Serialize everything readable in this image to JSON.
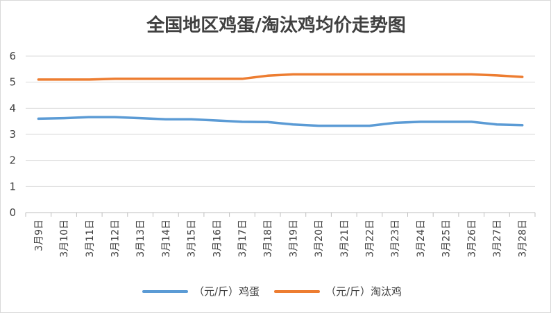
{
  "chart_data": {
    "type": "line",
    "title": "全国地区鸡蛋/淘汰鸡均价走势图",
    "xlabel": "",
    "ylabel": "",
    "categories": [
      "3月9日",
      "3月10日",
      "3月11日",
      "3月12日",
      "3月13日",
      "3月14日",
      "3月15日",
      "3月16日",
      "3月17日",
      "3月18日",
      "3月19日",
      "3月20日",
      "3月21日",
      "3月22日",
      "3月23日",
      "3月24日",
      "3月25日",
      "3月26日",
      "3月27日",
      "3月28日"
    ],
    "y_ticks": [
      "0",
      "1",
      "2",
      "3",
      "4",
      "5",
      "6"
    ],
    "ylim": [
      0,
      6
    ],
    "grid": true,
    "legend_position": "bottom",
    "series": [
      {
        "name": "（元/斤）鸡蛋",
        "color": "#5b9bd5",
        "values": [
          3.6,
          3.62,
          3.66,
          3.66,
          3.62,
          3.58,
          3.58,
          3.53,
          3.48,
          3.47,
          3.38,
          3.33,
          3.33,
          3.33,
          3.44,
          3.48,
          3.48,
          3.48,
          3.38,
          3.35
        ]
      },
      {
        "name": "（元/斤）淘汰鸡",
        "color": "#ed7d31",
        "values": [
          5.1,
          5.1,
          5.1,
          5.13,
          5.13,
          5.13,
          5.13,
          5.13,
          5.13,
          5.25,
          5.3,
          5.3,
          5.3,
          5.3,
          5.3,
          5.3,
          5.3,
          5.3,
          5.26,
          5.2
        ]
      }
    ]
  }
}
